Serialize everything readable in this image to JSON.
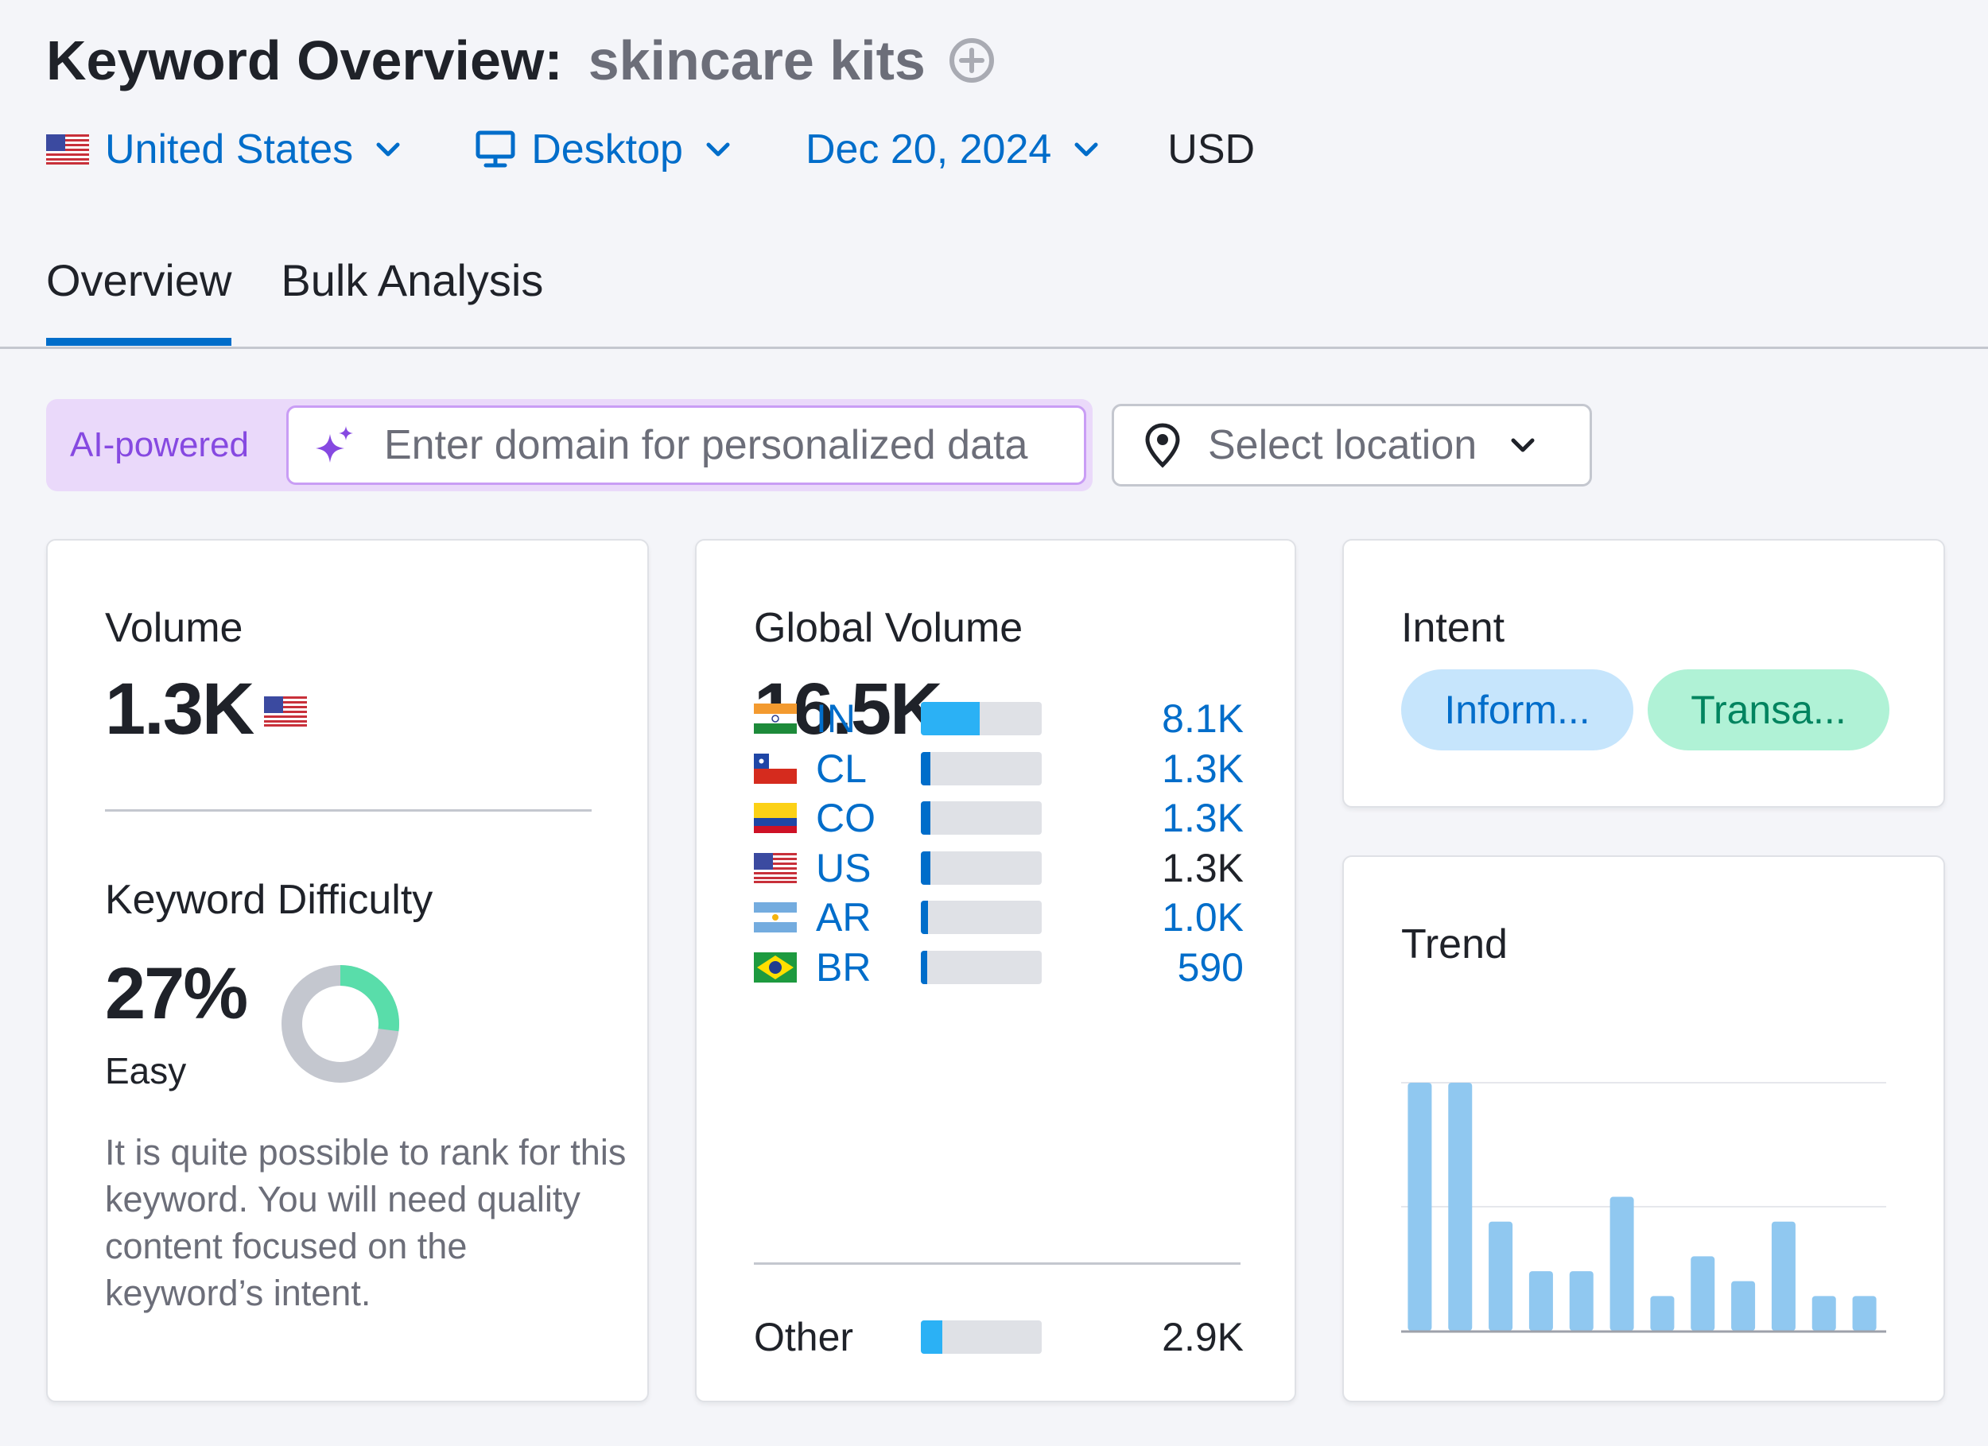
{
  "header": {
    "title": "Keyword Overview:",
    "keyword": "skincare kits"
  },
  "filters": {
    "country": "United States",
    "device": "Desktop",
    "date": "Dec 20, 2024",
    "currency": "USD"
  },
  "tabs": [
    {
      "label": "Overview",
      "active": true
    },
    {
      "label": "Bulk Analysis",
      "active": false
    }
  ],
  "ai": {
    "badge": "AI-powered",
    "placeholder": "Enter domain for personalized data"
  },
  "location": {
    "placeholder": "Select location"
  },
  "volume": {
    "label": "Volume",
    "value": "1.3K"
  },
  "keyword_difficulty": {
    "label": "Keyword Difficulty",
    "value": "27%",
    "percent": 27,
    "level": "Easy",
    "description": "It is quite possible to rank for this keyword. You will need quality content focused on the keyword’s intent."
  },
  "global_volume": {
    "label": "Global Volume",
    "value": "16.5K",
    "countries": [
      {
        "code": "IN",
        "value": "8.1K",
        "share": 0.49,
        "flag": "in"
      },
      {
        "code": "CL",
        "value": "1.3K",
        "share": 0.08,
        "flag": "cl"
      },
      {
        "code": "CO",
        "value": "1.3K",
        "share": 0.08,
        "flag": "co"
      },
      {
        "code": "US",
        "value": "1.3K",
        "share": 0.08,
        "flag": "us"
      },
      {
        "code": "AR",
        "value": "1.0K",
        "share": 0.06,
        "flag": "ar"
      },
      {
        "code": "BR",
        "value": "590",
        "share": 0.04,
        "flag": "br"
      }
    ],
    "other": {
      "label": "Other",
      "value": "2.9K",
      "share": 0.18
    }
  },
  "intent": {
    "label": "Intent",
    "tags": [
      "Inform...",
      "Transa..."
    ]
  },
  "trend": {
    "label": "Trend",
    "chart_data": {
      "type": "bar",
      "values": [
        100,
        100,
        44,
        24,
        24,
        54,
        14,
        30,
        20,
        44,
        14,
        14
      ],
      "ylim": [
        0,
        100
      ],
      "grid": true
    }
  },
  "colors": {
    "accent": "#006dca",
    "bar_primary": "#2bb1f5",
    "bar_secondary": "#006dca",
    "kd_easy": "#59ddaa",
    "kd_track": "#c4c7cf",
    "trend_bar": "#90c8f0"
  }
}
